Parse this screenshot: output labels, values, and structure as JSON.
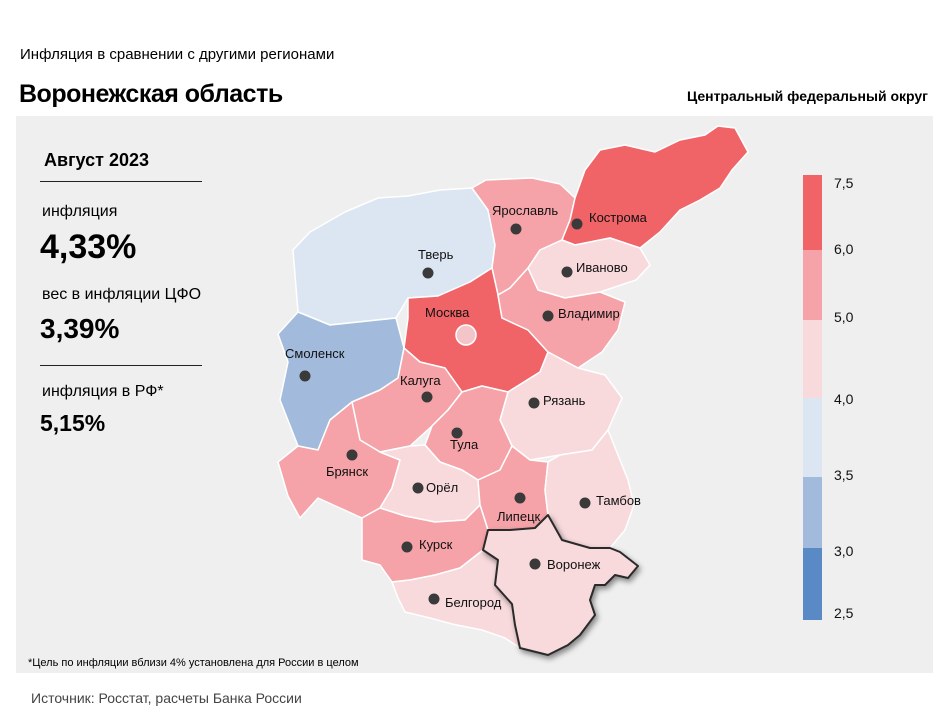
{
  "header": {
    "supertitle": "Инфляция  в сравнении  с другими  регионами",
    "title": "Воронежская область",
    "district": "Центральный федеральный округ"
  },
  "stats": {
    "period": "Август 2023",
    "inflation_label": "инфляция",
    "inflation_value": "4,33%",
    "weight_label": "вес в инфляции  ЦФО",
    "weight_value": "3,39%",
    "rf_label": "инфляция  в РФ*",
    "rf_value": "5,15%"
  },
  "footnote": "*Цель по инфляции вблизи 4% установлена для России в целом",
  "source": "Источник: Росстат, расчеты Банка России",
  "legend": {
    "ticks": [
      "7,5",
      "6,0",
      "5,0",
      "4,0",
      "3,5",
      "3,0",
      "2,5"
    ],
    "colors": [
      "#f06468",
      "#f5a3a8",
      "#f8dadd",
      "#dce6f2",
      "#a2bbdd",
      "#5a8ac6"
    ]
  },
  "regions": [
    {
      "name": "Тверь",
      "color": "#dce6f2"
    },
    {
      "name": "Ярославль",
      "color": "#f5a3a8"
    },
    {
      "name": "Кострома",
      "color": "#f06468"
    },
    {
      "name": "Иваново",
      "color": "#f8dadd"
    },
    {
      "name": "Москва",
      "color": "#f06468"
    },
    {
      "name": "Владимир",
      "color": "#f5a3a8"
    },
    {
      "name": "Смоленск",
      "color": "#a2bbdd"
    },
    {
      "name": "Калуга",
      "color": "#f5a3a8"
    },
    {
      "name": "Рязань",
      "color": "#f8dadd"
    },
    {
      "name": "Тула",
      "color": "#f5a3a8"
    },
    {
      "name": "Брянск",
      "color": "#f5a3a8"
    },
    {
      "name": "Орёл",
      "color": "#f8dadd"
    },
    {
      "name": "Липецк",
      "color": "#f5a3a8"
    },
    {
      "name": "Тамбов",
      "color": "#f8dadd"
    },
    {
      "name": "Курск",
      "color": "#f5a3a8"
    },
    {
      "name": "Воронеж",
      "color": "#f8dadd"
    },
    {
      "name": "Белгород",
      "color": "#f8dadd"
    }
  ]
}
